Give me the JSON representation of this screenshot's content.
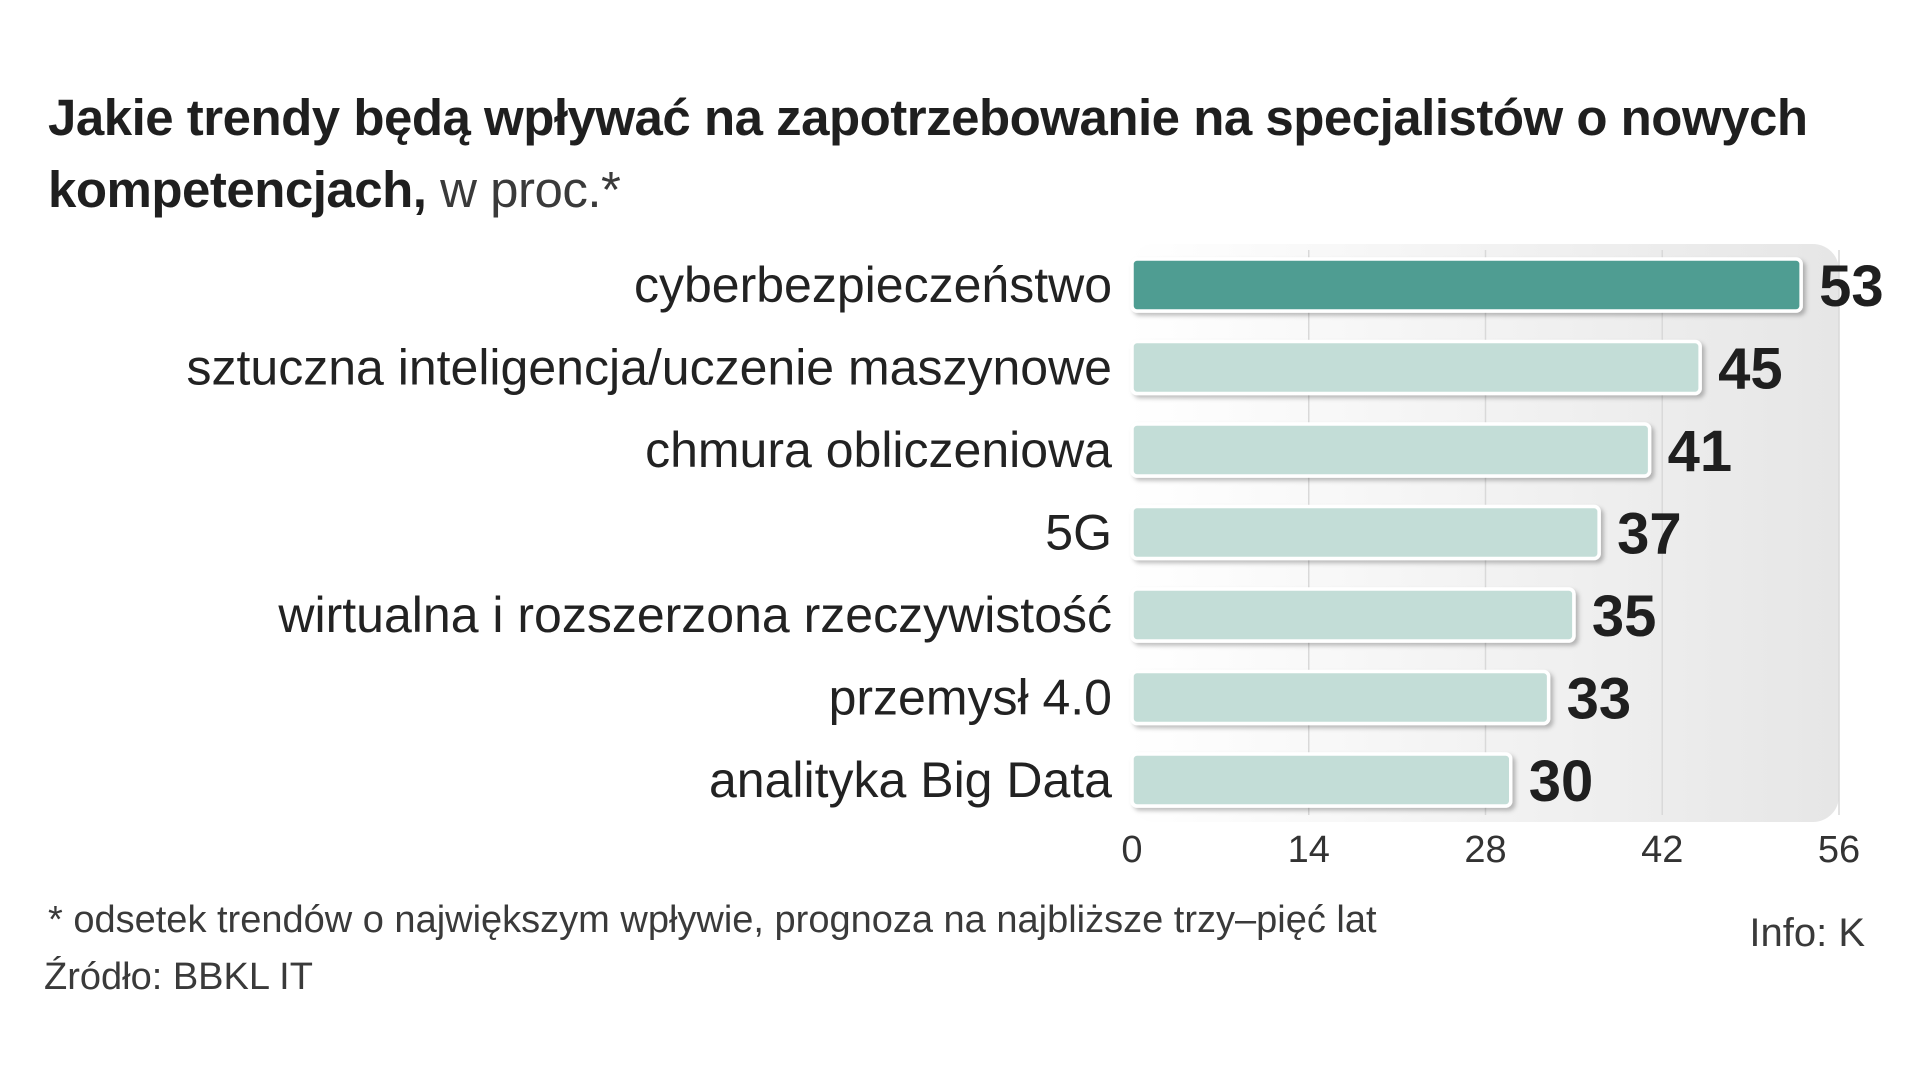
{
  "title": {
    "bold": "Jakie trendy będą wpływać na zapotrzebowanie na specjalistów o nowych kompetencjach,",
    "unit": "w proc.*"
  },
  "footnote": "* odsetek trendów o największym wpływie, prognoza na najbliższe trzy–pięć lat",
  "source": "Źródło: BBKL IT",
  "credit": "Info: K",
  "colors": {
    "highlight": "#4f9d92",
    "bar": "#c3ddd7",
    "panel": "#efefef",
    "grid": "#d9d9d9"
  },
  "chart_data": {
    "type": "bar",
    "orientation": "horizontal",
    "categories": [
      "cyberbezpieczeństwo",
      "sztuczna inteligencja/uczenie maszynowe",
      "chmura obliczeniowa",
      "5G",
      "wirtualna i rozszerzona rzeczywistość",
      "przemysł 4.0",
      "analityka Big Data"
    ],
    "values": [
      53,
      45,
      41,
      37,
      35,
      33,
      30
    ],
    "highlight_index": 0,
    "xlim": [
      0,
      56
    ],
    "xticks": [
      0,
      14,
      28,
      42,
      56
    ],
    "grid": true,
    "xlabel": "",
    "ylabel": ""
  }
}
